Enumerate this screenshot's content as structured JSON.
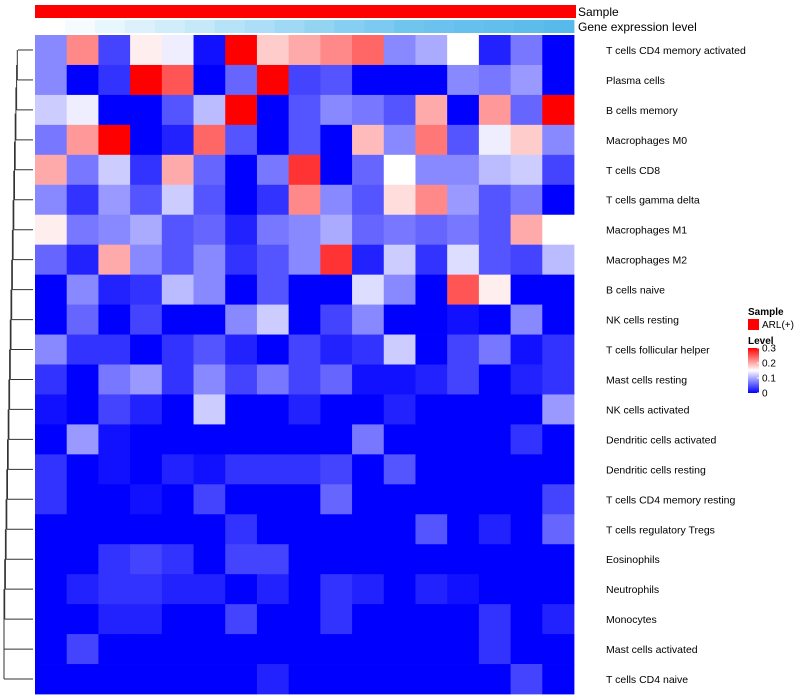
{
  "chart_data": {
    "type": "heatmap",
    "annotations": {
      "sample_label": "Sample",
      "sample_color": "#ff0000",
      "gene_label": "Gene expression level",
      "gene_colors": [
        "#ffffff",
        "#f6fbff",
        "#e8f6fd",
        "#dcf1fb",
        "#d1edfa",
        "#c5e9f9",
        "#b7e3f8",
        "#acdff7",
        "#9fd9f5",
        "#93d4f3",
        "#87cff2",
        "#7ccaf1",
        "#70c5ef",
        "#6bc2ee",
        "#66c0ee",
        "#62beed",
        "#5ebcec",
        "#58baeb"
      ]
    },
    "rows": [
      "T cells CD4 memory activated",
      "Plasma cells",
      "B cells memory",
      "Macrophages M0",
      "T cells CD8",
      "T cells gamma delta",
      "Macrophages M1",
      "Macrophages M2",
      "B cells naive",
      "NK cells resting",
      "T cells follicular helper",
      "Mast cells resting",
      "NK cells activated",
      "Dendritic cells activated",
      "Dendritic cells resting",
      "T cells CD4 memory resting",
      "T cells regulatory  Tregs",
      "Eosinophils",
      "Neutrophils",
      "Monocytes",
      "Mast cells activated",
      "T cells CD4 naive"
    ],
    "values": [
      [
        0.08,
        0.22,
        0.04,
        0.16,
        0.14,
        0.01,
        0.3,
        0.18,
        0.2,
        0.22,
        0.24,
        0.08,
        0.1,
        0.15,
        0.02,
        0.07,
        0.0
      ],
      [
        0.08,
        0.0,
        0.03,
        0.3,
        0.25,
        0.0,
        0.06,
        0.3,
        0.04,
        0.05,
        0.0,
        0.0,
        0.0,
        0.08,
        0.07,
        0.09,
        0.0
      ],
      [
        0.12,
        0.14,
        0.0,
        0.0,
        0.05,
        0.11,
        0.3,
        0.0,
        0.05,
        0.08,
        0.07,
        0.05,
        0.2,
        0.0,
        0.21,
        0.06,
        0.3
      ],
      [
        0.07,
        0.21,
        0.3,
        0.0,
        0.02,
        0.24,
        0.05,
        0.0,
        0.05,
        0.0,
        0.19,
        0.08,
        0.23,
        0.05,
        0.14,
        0.18,
        0.08
      ],
      [
        0.2,
        0.07,
        0.12,
        0.03,
        0.2,
        0.06,
        0.0,
        0.07,
        0.27,
        0.0,
        0.06,
        0.15,
        0.08,
        0.08,
        0.11,
        0.12,
        0.04
      ],
      [
        0.08,
        0.03,
        0.09,
        0.05,
        0.12,
        0.05,
        0.0,
        0.03,
        0.22,
        0.08,
        0.05,
        0.17,
        0.22,
        0.09,
        0.05,
        0.07,
        0.0
      ],
      [
        0.16,
        0.07,
        0.08,
        0.1,
        0.05,
        0.06,
        0.02,
        0.07,
        0.08,
        0.1,
        0.06,
        0.07,
        0.06,
        0.07,
        0.05,
        0.2,
        0.15
      ],
      [
        0.06,
        0.02,
        0.2,
        0.08,
        0.05,
        0.08,
        0.03,
        0.05,
        0.08,
        0.27,
        0.02,
        0.12,
        0.03,
        0.13,
        0.05,
        0.04,
        0.11
      ],
      [
        0.0,
        0.08,
        0.02,
        0.03,
        0.11,
        0.08,
        0.0,
        0.05,
        0.0,
        0.0,
        0.13,
        0.08,
        0.0,
        0.25,
        0.16,
        0.0,
        0.0
      ],
      [
        0.0,
        0.06,
        0.0,
        0.04,
        0.0,
        0.0,
        0.08,
        0.12,
        0.0,
        0.04,
        0.08,
        0.0,
        0.0,
        0.01,
        0.0,
        0.08,
        0.0
      ],
      [
        0.08,
        0.03,
        0.03,
        0.0,
        0.03,
        0.05,
        0.02,
        0.0,
        0.04,
        0.02,
        0.03,
        0.12,
        0.0,
        0.04,
        0.07,
        0.01,
        0.03
      ],
      [
        0.03,
        0.0,
        0.07,
        0.09,
        0.03,
        0.08,
        0.04,
        0.07,
        0.04,
        0.06,
        0.01,
        0.01,
        0.02,
        0.04,
        0.0,
        0.02,
        0.03
      ],
      [
        0.01,
        0.0,
        0.04,
        0.02,
        0.0,
        0.12,
        0.0,
        0.0,
        0.02,
        0.0,
        0.0,
        0.02,
        0.0,
        0.0,
        0.0,
        0.0,
        0.09
      ],
      [
        0.0,
        0.09,
        0.01,
        0.0,
        0.0,
        0.0,
        0.0,
        0.0,
        0.0,
        0.0,
        0.07,
        0.0,
        0.0,
        0.0,
        0.0,
        0.03,
        0.0
      ],
      [
        0.03,
        0.0,
        0.01,
        0.0,
        0.02,
        0.01,
        0.03,
        0.03,
        0.03,
        0.04,
        0.0,
        0.05,
        0.0,
        0.0,
        0.0,
        0.0,
        0.0
      ],
      [
        0.03,
        0.0,
        0.0,
        0.01,
        0.0,
        0.04,
        0.0,
        0.0,
        0.0,
        0.06,
        0.0,
        0.0,
        0.0,
        0.0,
        0.0,
        0.0,
        0.04
      ],
      [
        0.0,
        0.0,
        0.0,
        0.0,
        0.0,
        0.0,
        0.03,
        0.0,
        0.0,
        0.0,
        0.0,
        0.0,
        0.05,
        0.0,
        0.02,
        0.0,
        0.06
      ],
      [
        0.0,
        0.0,
        0.03,
        0.04,
        0.03,
        0.0,
        0.04,
        0.04,
        0.0,
        0.0,
        0.0,
        0.0,
        0.0,
        0.0,
        0.0,
        0.0,
        0.0
      ],
      [
        0.0,
        0.02,
        0.03,
        0.03,
        0.02,
        0.02,
        0.0,
        0.02,
        0.0,
        0.03,
        0.02,
        0.0,
        0.02,
        0.01,
        0.0,
        0.0,
        0.0
      ],
      [
        0.0,
        0.0,
        0.02,
        0.02,
        0.0,
        0.0,
        0.04,
        0.0,
        0.0,
        0.03,
        0.0,
        0.0,
        0.0,
        0.0,
        0.03,
        0.0,
        0.02
      ],
      [
        0.0,
        0.04,
        0.0,
        0.0,
        0.0,
        0.0,
        0.0,
        0.0,
        0.0,
        0.0,
        0.0,
        0.0,
        0.0,
        0.0,
        0.03,
        0.0,
        0.0
      ],
      [
        0.0,
        0.0,
        0.0,
        0.0,
        0.0,
        0.0,
        0.0,
        0.02,
        0.0,
        0.0,
        0.0,
        0.0,
        0.0,
        0.0,
        0.0,
        0.04,
        0.0
      ]
    ],
    "color_scale": {
      "min": 0,
      "max": 0.3,
      "colors": [
        "#0000ff",
        "#ffffff",
        "#ff0000"
      ]
    },
    "legend": {
      "sample_title": "Sample",
      "sample_entry": "ARL(+)",
      "sample_entry_color": "#ff0000",
      "level_title": "Level",
      "level_ticks": [
        {
          "value": 0.3,
          "label": "0.3"
        },
        {
          "value": 0.2,
          "label": "0.2"
        },
        {
          "value": 0.1,
          "label": "0.1"
        },
        {
          "value": 0,
          "label": "0"
        }
      ]
    },
    "dendrogram": {
      "side": "left",
      "merges": [
        [
          0,
          1
        ],
        [
          2,
          3
        ],
        [
          4,
          5
        ],
        [
          6,
          7
        ],
        [
          8,
          9
        ],
        [
          10,
          11
        ],
        [
          12,
          13
        ],
        [
          14,
          15
        ],
        [
          16,
          17
        ],
        [
          18,
          19
        ],
        [
          20,
          21
        ],
        [
          22,
          23
        ],
        [
          24,
          25
        ],
        [
          26,
          27
        ],
        [
          28,
          29
        ],
        [
          30,
          31
        ],
        [
          32,
          33
        ],
        [
          34,
          35
        ],
        [
          36,
          37
        ],
        [
          38,
          39
        ],
        [
          40,
          41
        ]
      ]
    }
  }
}
